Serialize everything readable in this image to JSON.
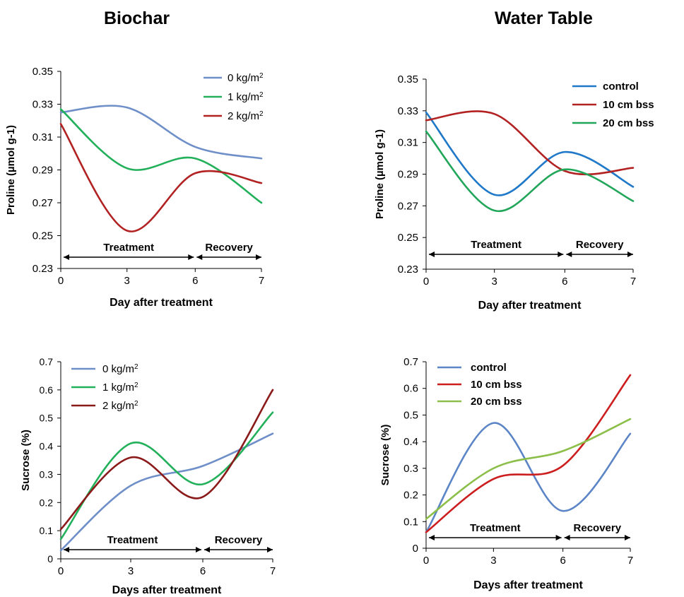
{
  "titles": {
    "left": "Biochar",
    "right": "Water Table"
  },
  "phases": {
    "treatment": "Treatment",
    "recovery": "Recovery"
  },
  "chart_data": [
    {
      "type": "line",
      "ylabel": "Proline (µmol g-1)",
      "xlabel": "Day after treatment",
      "x_ticks": [
        "0",
        "3",
        "6",
        "7"
      ],
      "y_ticks": [
        "0.23",
        "0.25",
        "0.27",
        "0.29",
        "0.31",
        "0.33",
        "0.35"
      ],
      "ylim": [
        0.23,
        0.35
      ],
      "legend": "top-right",
      "series": [
        {
          "name": "0 kg/m2",
          "color": "#6f8fc9",
          "values": [
            0.325,
            0.328,
            0.304,
            0.297
          ]
        },
        {
          "name": "1 kg/m2",
          "color": "#22b05a",
          "values": [
            0.327,
            0.291,
            0.297,
            0.27
          ]
        },
        {
          "name": "2 kg/m2",
          "color": "#b22222",
          "values": [
            0.318,
            0.253,
            0.288,
            0.282
          ]
        }
      ]
    },
    {
      "type": "line",
      "ylabel": "Proline (µmol g-1)",
      "xlabel": "Day after treatment",
      "x_ticks": [
        "0",
        "3",
        "6",
        "7"
      ],
      "y_ticks": [
        "0.23",
        "0.25",
        "0.27",
        "0.29",
        "0.31",
        "0.33",
        "0.35"
      ],
      "ylim": [
        0.23,
        0.35
      ],
      "legend": "top-right",
      "series": [
        {
          "name": "control",
          "color": "#1f78c8",
          "values": [
            0.329,
            0.277,
            0.304,
            0.282
          ]
        },
        {
          "name": "10 cm bss",
          "color": "#b22222",
          "values": [
            0.324,
            0.328,
            0.292,
            0.294
          ]
        },
        {
          "name": "20 cm bss",
          "color": "#22a65a",
          "values": [
            0.317,
            0.267,
            0.293,
            0.273
          ]
        }
      ]
    },
    {
      "type": "line",
      "ylabel": "Sucrose (%)",
      "xlabel": "Days after treatment",
      "x_ticks": [
        "0",
        "3",
        "6",
        "7"
      ],
      "y_ticks": [
        "0",
        "0.1",
        "0.2",
        "0.3",
        "0.4",
        "0.5",
        "0.6",
        "0.7"
      ],
      "ylim": [
        0,
        0.7
      ],
      "legend": "top-left",
      "series": [
        {
          "name": "0 kg/m2",
          "color": "#6f8fc9",
          "values": [
            0.03,
            0.26,
            0.33,
            0.445
          ]
        },
        {
          "name": "1 kg/m2",
          "color": "#22b05a",
          "values": [
            0.07,
            0.41,
            0.265,
            0.52
          ]
        },
        {
          "name": "2 kg/m2",
          "color": "#8b1a1a",
          "values": [
            0.105,
            0.36,
            0.22,
            0.6
          ]
        }
      ]
    },
    {
      "type": "line",
      "ylabel": "Sucrose (%)",
      "xlabel": "Days  after  treatment",
      "x_ticks": [
        "0",
        "3",
        "6",
        "7"
      ],
      "y_ticks": [
        "0",
        "0.1",
        "0.2",
        "0.3",
        "0.4",
        "0.5",
        "0.6",
        "0.7"
      ],
      "ylim": [
        0,
        0.7
      ],
      "legend": "top-left",
      "series": [
        {
          "name": "control",
          "color": "#5b85c6",
          "values": [
            0.06,
            0.47,
            0.14,
            0.43
          ]
        },
        {
          "name": "10 cm bss",
          "color": "#cc1e1e",
          "values": [
            0.06,
            0.26,
            0.31,
            0.65
          ]
        },
        {
          "name": "20 cm bss",
          "color": "#8cbf4a",
          "values": [
            0.11,
            0.3,
            0.365,
            0.485
          ]
        }
      ]
    }
  ]
}
